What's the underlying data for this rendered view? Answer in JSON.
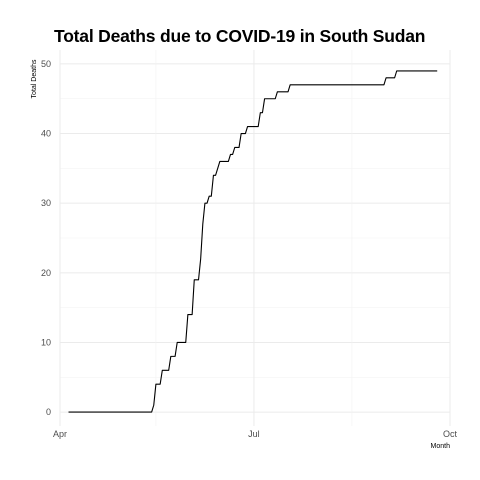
{
  "chart_data": {
    "type": "line",
    "title": "Total Deaths due to COVID-19 in South Sudan",
    "xlabel": "Month",
    "ylabel": "Total Deaths",
    "x_ticks": [
      "Apr",
      "Jul",
      "Oct"
    ],
    "y_ticks": [
      0,
      10,
      20,
      30,
      40,
      50
    ],
    "xlim": [
      "2020-04-01",
      "2020-10-01"
    ],
    "ylim": [
      -2,
      52
    ],
    "grid": true,
    "series": [
      {
        "color": "#000000",
        "points": [
          [
            "2020-04-05",
            0
          ],
          [
            "2020-05-14",
            0
          ],
          [
            "2020-05-15",
            1
          ],
          [
            "2020-05-16",
            4
          ],
          [
            "2020-05-18",
            4
          ],
          [
            "2020-05-19",
            6
          ],
          [
            "2020-05-22",
            6
          ],
          [
            "2020-05-23",
            8
          ],
          [
            "2020-05-25",
            8
          ],
          [
            "2020-05-26",
            10
          ],
          [
            "2020-05-30",
            10
          ],
          [
            "2020-05-31",
            14
          ],
          [
            "2020-06-02",
            14
          ],
          [
            "2020-06-03",
            19
          ],
          [
            "2020-06-05",
            19
          ],
          [
            "2020-06-06",
            22
          ],
          [
            "2020-06-07",
            27
          ],
          [
            "2020-06-08",
            30
          ],
          [
            "2020-06-09",
            30
          ],
          [
            "2020-06-10",
            31
          ],
          [
            "2020-06-11",
            31
          ],
          [
            "2020-06-12",
            34
          ],
          [
            "2020-06-13",
            34
          ],
          [
            "2020-06-15",
            36
          ],
          [
            "2020-06-19",
            36
          ],
          [
            "2020-06-20",
            37
          ],
          [
            "2020-06-21",
            37
          ],
          [
            "2020-06-22",
            38
          ],
          [
            "2020-06-24",
            38
          ],
          [
            "2020-06-25",
            40
          ],
          [
            "2020-06-27",
            40
          ],
          [
            "2020-06-28",
            41
          ],
          [
            "2020-07-03",
            41
          ],
          [
            "2020-07-04",
            43
          ],
          [
            "2020-07-05",
            43
          ],
          [
            "2020-07-06",
            45
          ],
          [
            "2020-07-11",
            45
          ],
          [
            "2020-07-12",
            46
          ],
          [
            "2020-07-17",
            46
          ],
          [
            "2020-07-18",
            47
          ],
          [
            "2020-08-31",
            47
          ],
          [
            "2020-09-01",
            48
          ],
          [
            "2020-09-05",
            48
          ],
          [
            "2020-09-06",
            49
          ],
          [
            "2020-09-25",
            49
          ]
        ]
      }
    ]
  }
}
